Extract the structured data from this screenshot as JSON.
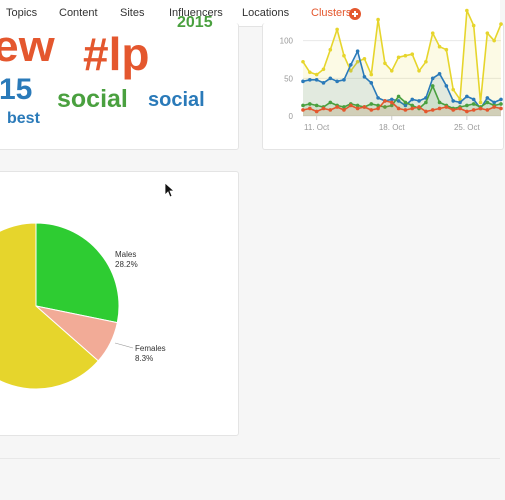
{
  "nav": {
    "items": [
      "Topics",
      "Content",
      "Sites",
      "Influencers",
      "Locations"
    ],
    "active": "Clusters"
  },
  "wordcloud": {
    "words": [
      {
        "text": "ew",
        "color": "#e4572e"
      },
      {
        "text": "#lp",
        "color": "#e4572e"
      },
      {
        "text": "2015",
        "color": "#4aa03f"
      },
      {
        "text": "15",
        "color": "#2a7ab9"
      },
      {
        "text": "social",
        "color": "#4aa03f"
      },
      {
        "text": "social",
        "color": "#2a7ab9"
      },
      {
        "text": "best",
        "color": "#2a7ab9"
      }
    ]
  },
  "chart_data": [
    {
      "type": "line",
      "x_labels": [
        "11. Oct",
        "18. Oct",
        "25. Oct"
      ],
      "y_ticks": [
        0,
        50,
        100
      ],
      "ylim": [
        0,
        150
      ],
      "series": [
        {
          "color": "#e6d52c",
          "values": [
            72,
            58,
            55,
            62,
            88,
            115,
            80,
            60,
            72,
            76,
            55,
            128,
            70,
            60,
            78,
            80,
            82,
            60,
            72,
            110,
            92,
            88,
            35,
            22,
            140,
            120,
            18,
            110,
            100,
            122
          ]
        },
        {
          "color": "#2a7ab9",
          "values": [
            46,
            48,
            48,
            44,
            50,
            46,
            48,
            68,
            86,
            52,
            44,
            24,
            20,
            22,
            20,
            14,
            22,
            20,
            24,
            50,
            56,
            40,
            20,
            18,
            26,
            22,
            10,
            24,
            18,
            22
          ]
        },
        {
          "color": "#4aa03f",
          "values": [
            14,
            16,
            14,
            12,
            18,
            14,
            12,
            16,
            14,
            12,
            16,
            14,
            12,
            14,
            26,
            18,
            14,
            10,
            18,
            40,
            18,
            14,
            10,
            12,
            14,
            16,
            12,
            18,
            14,
            16
          ]
        },
        {
          "color": "#e4572e",
          "values": [
            8,
            10,
            6,
            10,
            8,
            12,
            8,
            14,
            10,
            12,
            8,
            10,
            20,
            18,
            10,
            8,
            10,
            12,
            6,
            8,
            10,
            12,
            8,
            10,
            6,
            8,
            10,
            8,
            12,
            10
          ]
        }
      ]
    },
    {
      "type": "pie",
      "slices": [
        {
          "label": "Males",
          "percent_text": "28.2%",
          "value": 28.2,
          "color": "#2ecc32"
        },
        {
          "label": "Females",
          "percent_text": "8.3%",
          "value": 8.3,
          "color": "#f2ab97"
        },
        {
          "label": "",
          "percent_text": "",
          "value": 63.5,
          "color": "#e6d52c"
        }
      ]
    }
  ]
}
